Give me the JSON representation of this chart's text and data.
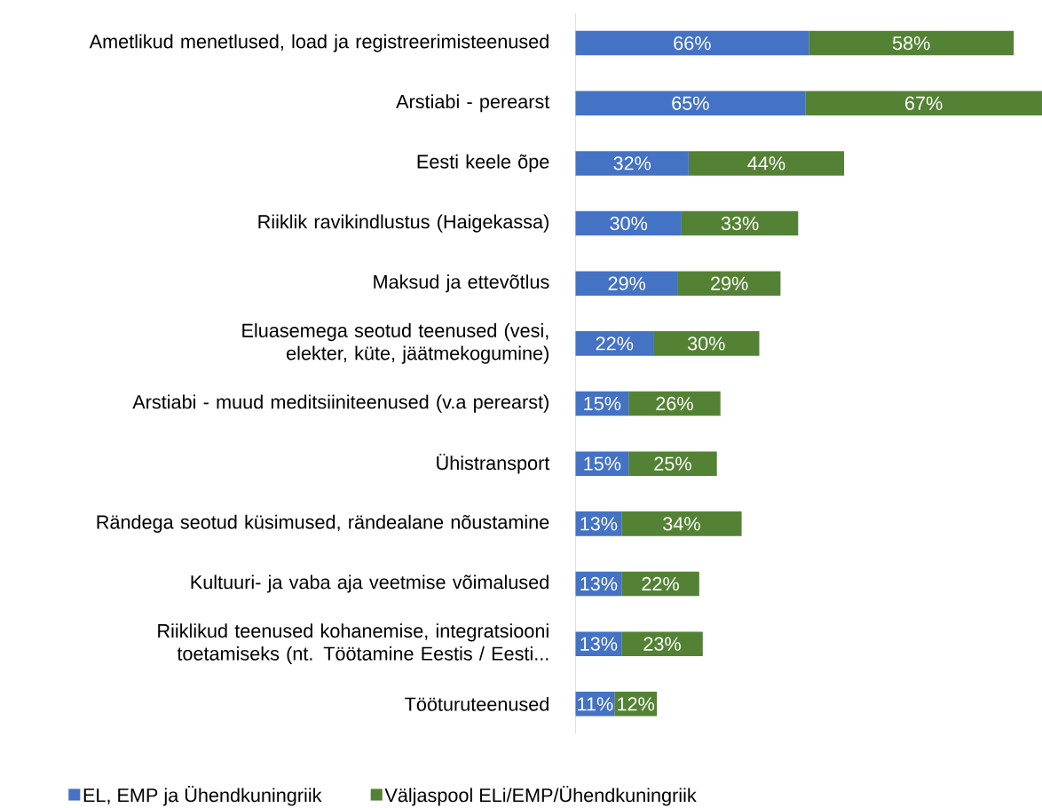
{
  "chart_data": {
    "type": "bar",
    "orientation": "horizontal",
    "stacked": true,
    "legend": "bottom",
    "categories": [
      "Ametlikud menetlused, load ja registreerimisteenused",
      "Arstiabi - perearst",
      "Eesti keele õpe",
      "Riiklik ravikindlustus (Haigekassa)",
      "Maksud ja ettevõtlus",
      "Eluasemega seotud teenused (vesi, elekter, küte, jäätmekogumine)",
      "Arstiabi - muud meditsiiniteenused (v.a perearst)",
      "Ühistransport",
      "Rändega seotud küsimused, rändealane nõustamine",
      "Kultuuri- ja vaba aja veetmise võimalused",
      "Riiklikud teenused kohanemise, integratsiooni toetamiseks (nt. Töötamine Eestis / Eesti...",
      "Tööturuteenused"
    ],
    "series": [
      {
        "name": "EL, EMP ja Ühendkuningriik",
        "color": "#4472c4",
        "values": [
          66,
          65,
          32,
          30,
          29,
          22,
          15,
          15,
          13,
          13,
          13,
          11
        ],
        "value_labels": [
          "66%",
          "65%",
          "32%",
          "30%",
          "29%",
          "22%",
          "15%",
          "15%",
          "13%",
          "13%",
          "13%",
          "11%"
        ]
      },
      {
        "name": "Väljaspool ELi/EMP/Ühendkuningriik",
        "color": "#548235",
        "values": [
          58,
          67,
          44,
          33,
          29,
          30,
          26,
          25,
          34,
          22,
          23,
          12
        ],
        "value_labels": [
          "58%",
          "67%",
          "44%",
          "33%",
          "29%",
          "30%",
          "26%",
          "25%",
          "34%",
          "22%",
          "23%",
          "12%"
        ]
      }
    ]
  }
}
